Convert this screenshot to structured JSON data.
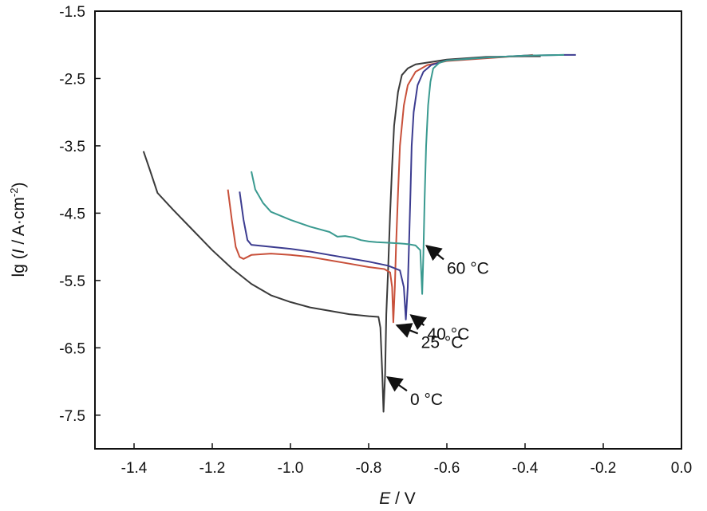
{
  "chart_data": {
    "type": "line",
    "xlabel": {
      "var": "E",
      "sep": " / ",
      "unit": "V"
    },
    "ylabel": {
      "pre": "lg (",
      "var": "I",
      "post": " / A·cm",
      "sup": "-2",
      "close": ")"
    },
    "xlim": [
      -1.5,
      0.0
    ],
    "ylim": [
      -8.0,
      -1.5
    ],
    "x_ticks": [
      -1.4,
      -1.2,
      -1.0,
      -0.8,
      -0.6,
      -0.4,
      -0.2,
      0.0
    ],
    "x_tick_labels": [
      "-1.4",
      "-1.2",
      "-1.0",
      "-0.8",
      "-0.6",
      "-0.4",
      "-0.2",
      "0.0"
    ],
    "y_ticks": [
      -1.5,
      -2.5,
      -3.5,
      -4.5,
      -5.5,
      -6.5,
      -7.5
    ],
    "y_tick_labels": [
      "-1.5",
      "-2.5",
      "-3.5",
      "-4.5",
      "-5.5",
      "-6.5",
      "-7.5"
    ],
    "grid": false,
    "series": [
      {
        "name": "0 °C",
        "color": "#3a3a3a",
        "points": [
          [
            -1.376,
            -3.58
          ],
          [
            -1.36,
            -3.85
          ],
          [
            -1.34,
            -4.2
          ],
          [
            -1.3,
            -4.45
          ],
          [
            -1.25,
            -4.75
          ],
          [
            -1.2,
            -5.05
          ],
          [
            -1.15,
            -5.32
          ],
          [
            -1.1,
            -5.55
          ],
          [
            -1.05,
            -5.72
          ],
          [
            -1.0,
            -5.82
          ],
          [
            -0.95,
            -5.9
          ],
          [
            -0.9,
            -5.95
          ],
          [
            -0.85,
            -6.0
          ],
          [
            -0.8,
            -6.03
          ],
          [
            -0.775,
            -6.04
          ],
          [
            -0.77,
            -6.2
          ],
          [
            -0.765,
            -6.9
          ],
          [
            -0.762,
            -7.45
          ],
          [
            -0.758,
            -6.9
          ],
          [
            -0.755,
            -6.0
          ],
          [
            -0.75,
            -5.3
          ],
          [
            -0.745,
            -4.5
          ],
          [
            -0.74,
            -3.8
          ],
          [
            -0.735,
            -3.2
          ],
          [
            -0.725,
            -2.7
          ],
          [
            -0.715,
            -2.45
          ],
          [
            -0.7,
            -2.35
          ],
          [
            -0.68,
            -2.29
          ],
          [
            -0.6,
            -2.22
          ],
          [
            -0.5,
            -2.18
          ],
          [
            -0.4,
            -2.17
          ],
          [
            -0.36,
            -2.17
          ]
        ]
      },
      {
        "name": "25 °C",
        "color": "#c8503a",
        "points": [
          [
            -1.16,
            -4.15
          ],
          [
            -1.15,
            -4.6
          ],
          [
            -1.14,
            -5.0
          ],
          [
            -1.13,
            -5.15
          ],
          [
            -1.12,
            -5.18
          ],
          [
            -1.1,
            -5.12
          ],
          [
            -1.05,
            -5.1
          ],
          [
            -1.0,
            -5.12
          ],
          [
            -0.95,
            -5.15
          ],
          [
            -0.9,
            -5.2
          ],
          [
            -0.85,
            -5.25
          ],
          [
            -0.8,
            -5.3
          ],
          [
            -0.76,
            -5.33
          ],
          [
            -0.745,
            -5.38
          ],
          [
            -0.74,
            -5.6
          ],
          [
            -0.737,
            -6.12
          ],
          [
            -0.733,
            -5.6
          ],
          [
            -0.73,
            -5.0
          ],
          [
            -0.725,
            -4.2
          ],
          [
            -0.72,
            -3.5
          ],
          [
            -0.71,
            -2.9
          ],
          [
            -0.7,
            -2.6
          ],
          [
            -0.68,
            -2.4
          ],
          [
            -0.65,
            -2.3
          ],
          [
            -0.6,
            -2.24
          ],
          [
            -0.5,
            -2.2
          ],
          [
            -0.4,
            -2.16
          ],
          [
            -0.38,
            -2.15
          ]
        ]
      },
      {
        "name": "40 °C",
        "color": "#3c3c90",
        "points": [
          [
            -1.13,
            -4.18
          ],
          [
            -1.12,
            -4.6
          ],
          [
            -1.11,
            -4.9
          ],
          [
            -1.1,
            -4.97
          ],
          [
            -1.05,
            -5.0
          ],
          [
            -1.0,
            -5.03
          ],
          [
            -0.95,
            -5.07
          ],
          [
            -0.9,
            -5.12
          ],
          [
            -0.85,
            -5.17
          ],
          [
            -0.8,
            -5.22
          ],
          [
            -0.75,
            -5.28
          ],
          [
            -0.72,
            -5.35
          ],
          [
            -0.71,
            -5.6
          ],
          [
            -0.705,
            -6.08
          ],
          [
            -0.7,
            -5.6
          ],
          [
            -0.697,
            -5.0
          ],
          [
            -0.693,
            -4.2
          ],
          [
            -0.69,
            -3.5
          ],
          [
            -0.685,
            -3.0
          ],
          [
            -0.675,
            -2.6
          ],
          [
            -0.66,
            -2.4
          ],
          [
            -0.64,
            -2.3
          ],
          [
            -0.6,
            -2.23
          ],
          [
            -0.5,
            -2.19
          ],
          [
            -0.4,
            -2.16
          ],
          [
            -0.3,
            -2.15
          ],
          [
            -0.27,
            -2.15
          ]
        ]
      },
      {
        "name": "60 °C",
        "color": "#3a9a90",
        "points": [
          [
            -1.1,
            -3.88
          ],
          [
            -1.09,
            -4.15
          ],
          [
            -1.07,
            -4.35
          ],
          [
            -1.05,
            -4.48
          ],
          [
            -1.0,
            -4.6
          ],
          [
            -0.95,
            -4.7
          ],
          [
            -0.9,
            -4.78
          ],
          [
            -0.88,
            -4.85
          ],
          [
            -0.86,
            -4.84
          ],
          [
            -0.84,
            -4.86
          ],
          [
            -0.82,
            -4.9
          ],
          [
            -0.8,
            -4.92
          ],
          [
            -0.78,
            -4.93
          ],
          [
            -0.75,
            -4.94
          ],
          [
            -0.72,
            -4.95
          ],
          [
            -0.7,
            -4.96
          ],
          [
            -0.68,
            -4.98
          ],
          [
            -0.668,
            -5.05
          ],
          [
            -0.663,
            -5.7
          ],
          [
            -0.66,
            -5.1
          ],
          [
            -0.657,
            -4.3
          ],
          [
            -0.653,
            -3.5
          ],
          [
            -0.648,
            -2.9
          ],
          [
            -0.642,
            -2.55
          ],
          [
            -0.635,
            -2.35
          ],
          [
            -0.62,
            -2.27
          ],
          [
            -0.6,
            -2.23
          ],
          [
            -0.5,
            -2.19
          ],
          [
            -0.4,
            -2.16
          ],
          [
            -0.3,
            -2.15
          ]
        ]
      }
    ],
    "annotations": [
      {
        "series": "60 °C",
        "text": "60 °C",
        "point": [
          -0.66,
          -4.95
        ],
        "label_at": [
          -0.6,
          -5.4
        ]
      },
      {
        "series": "40 °C",
        "text": "40 °C",
        "point": [
          -0.7,
          -5.98
        ],
        "label_at": [
          -0.65,
          -6.38
        ]
      },
      {
        "series": "25 °C",
        "text": "25 °C",
        "point": [
          -0.736,
          -6.13
        ],
        "label_at": [
          -0.666,
          -6.5
        ]
      },
      {
        "series": "0 °C",
        "text": "0 °C",
        "point": [
          -0.76,
          -6.9
        ],
        "label_at": [
          -0.694,
          -7.35
        ]
      }
    ]
  }
}
